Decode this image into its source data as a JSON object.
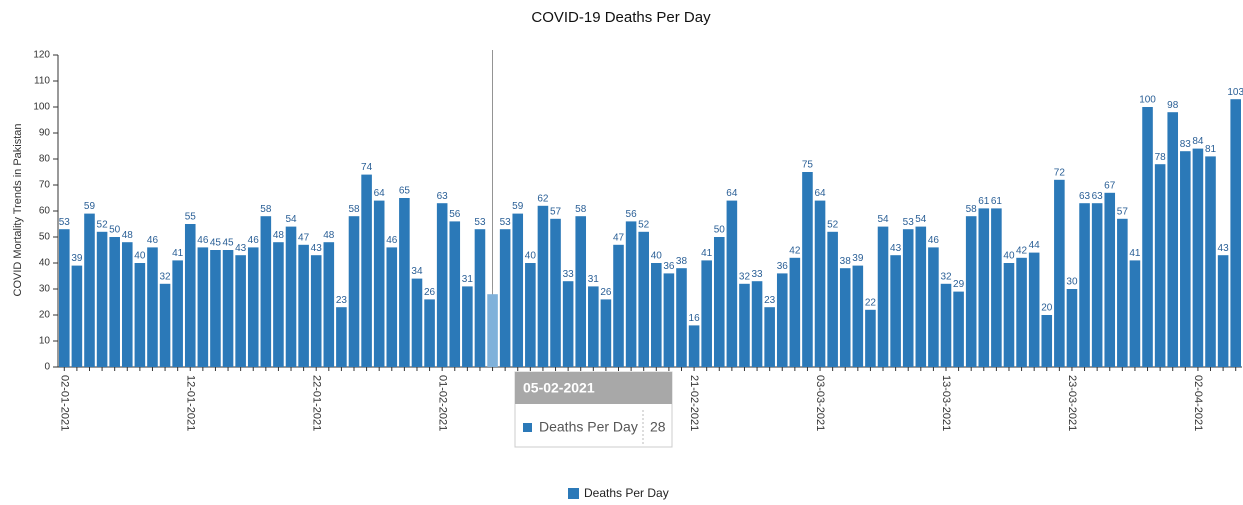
{
  "chart_data": {
    "type": "bar",
    "title": "COVID-19 Deaths Per Day",
    "y_label": "COVID Mortality Trends in Pakistan",
    "categories": [
      "02-01-2021",
      null,
      null,
      null,
      null,
      null,
      null,
      null,
      null,
      null,
      "12-01-2021",
      null,
      null,
      null,
      null,
      null,
      null,
      null,
      null,
      null,
      "22-01-2021",
      null,
      null,
      null,
      null,
      null,
      null,
      null,
      null,
      null,
      "01-02-2021",
      null,
      null,
      null,
      null,
      null,
      null,
      null,
      null,
      null,
      "11-02-2021",
      null,
      null,
      null,
      null,
      null,
      null,
      null,
      null,
      null,
      "21-02-2021",
      null,
      null,
      null,
      null,
      null,
      null,
      null,
      null,
      null,
      "03-03-2021",
      null,
      null,
      null,
      null,
      null,
      null,
      null,
      null,
      null,
      "13-03-2021",
      null,
      null,
      null,
      null,
      null,
      null,
      null,
      null,
      null,
      "23-03-2021",
      null,
      null,
      null,
      null,
      null,
      null,
      null,
      null,
      null,
      "02-04-2021",
      null,
      null,
      null
    ],
    "series": [
      {
        "name": "Deaths Per Day",
        "color": "#2b79b8",
        "values": [
          53,
          39,
          59,
          52,
          50,
          48,
          40,
          46,
          32,
          41,
          55,
          46,
          45,
          45,
          43,
          46,
          58,
          48,
          54,
          47,
          43,
          48,
          23,
          58,
          74,
          64,
          46,
          65,
          34,
          26,
          63,
          56,
          31,
          53,
          28,
          53,
          59,
          40,
          62,
          57,
          33,
          58,
          31,
          26,
          47,
          56,
          52,
          40,
          36,
          38,
          16,
          41,
          50,
          64,
          32,
          33,
          23,
          36,
          42,
          75,
          64,
          52,
          38,
          39,
          22,
          54,
          43,
          53,
          54,
          46,
          32,
          29,
          58,
          61,
          61,
          40,
          42,
          44,
          20,
          72,
          30,
          63,
          63,
          67,
          57,
          41,
          100,
          78,
          98,
          83,
          84,
          81,
          43,
          103
        ]
      }
    ],
    "ylim": [
      0,
      120
    ],
    "yticks": [
      0,
      10,
      20,
      30,
      40,
      50,
      60,
      70,
      80,
      90,
      100,
      110,
      120
    ],
    "legend": "bottom",
    "tooltip": {
      "category": "05-02-2021"
    }
  }
}
